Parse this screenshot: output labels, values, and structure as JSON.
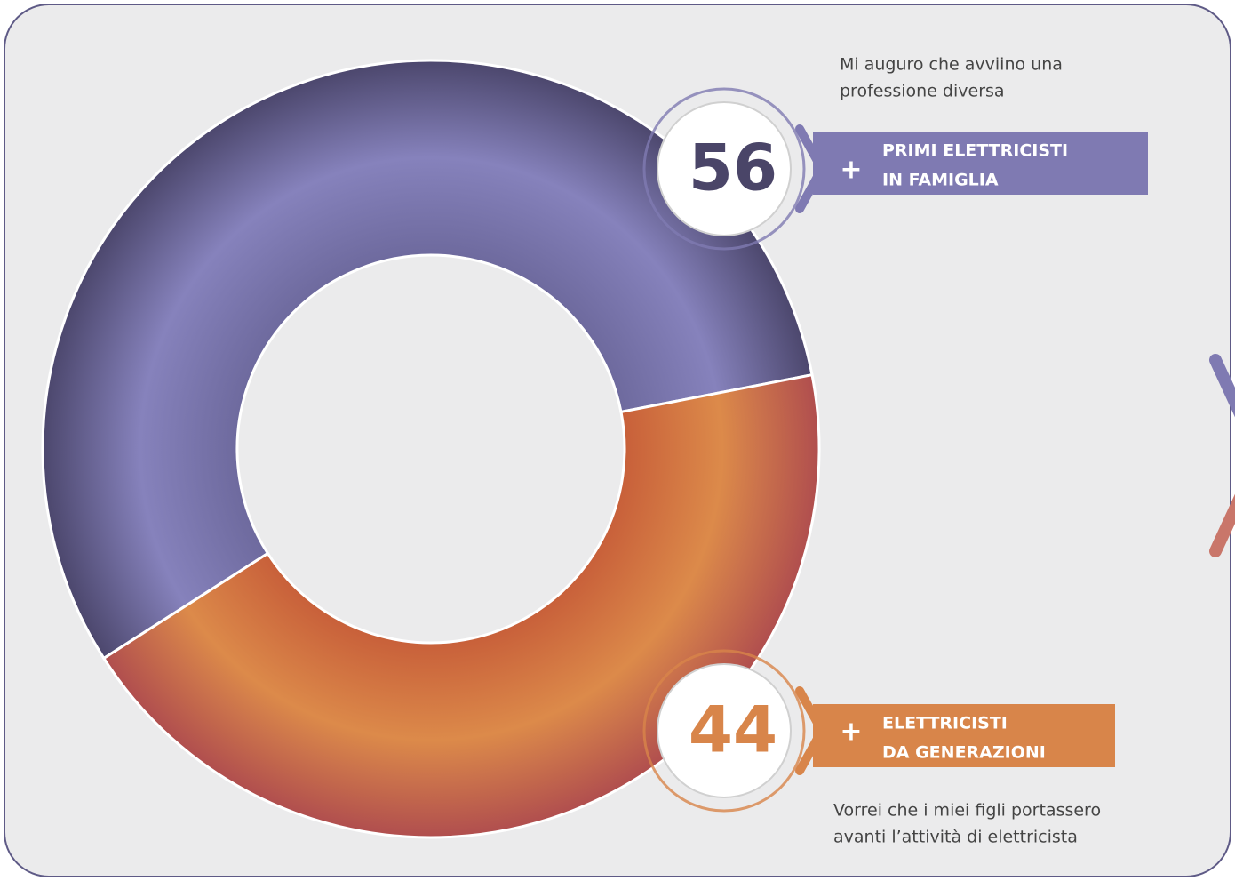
{
  "chart_data": {
    "type": "donut",
    "categories": [
      [
        "PRIMI ELETTRICISTI",
        "IN FAMIGLIA"
      ],
      [
        "ELETTRICISTI",
        "DA GENERAZIONI"
      ]
    ],
    "values": [
      56,
      44
    ],
    "colors": [
      "#7f7ab2",
      "#d8854a"
    ],
    "label_prefix": "+",
    "annotations": [
      [
        "Mi auguro che avviino una",
        "professione diversa"
      ],
      [
        "Vorrei che i miei figli portassero",
        "avanti l’attività di elettricista"
      ]
    ]
  }
}
